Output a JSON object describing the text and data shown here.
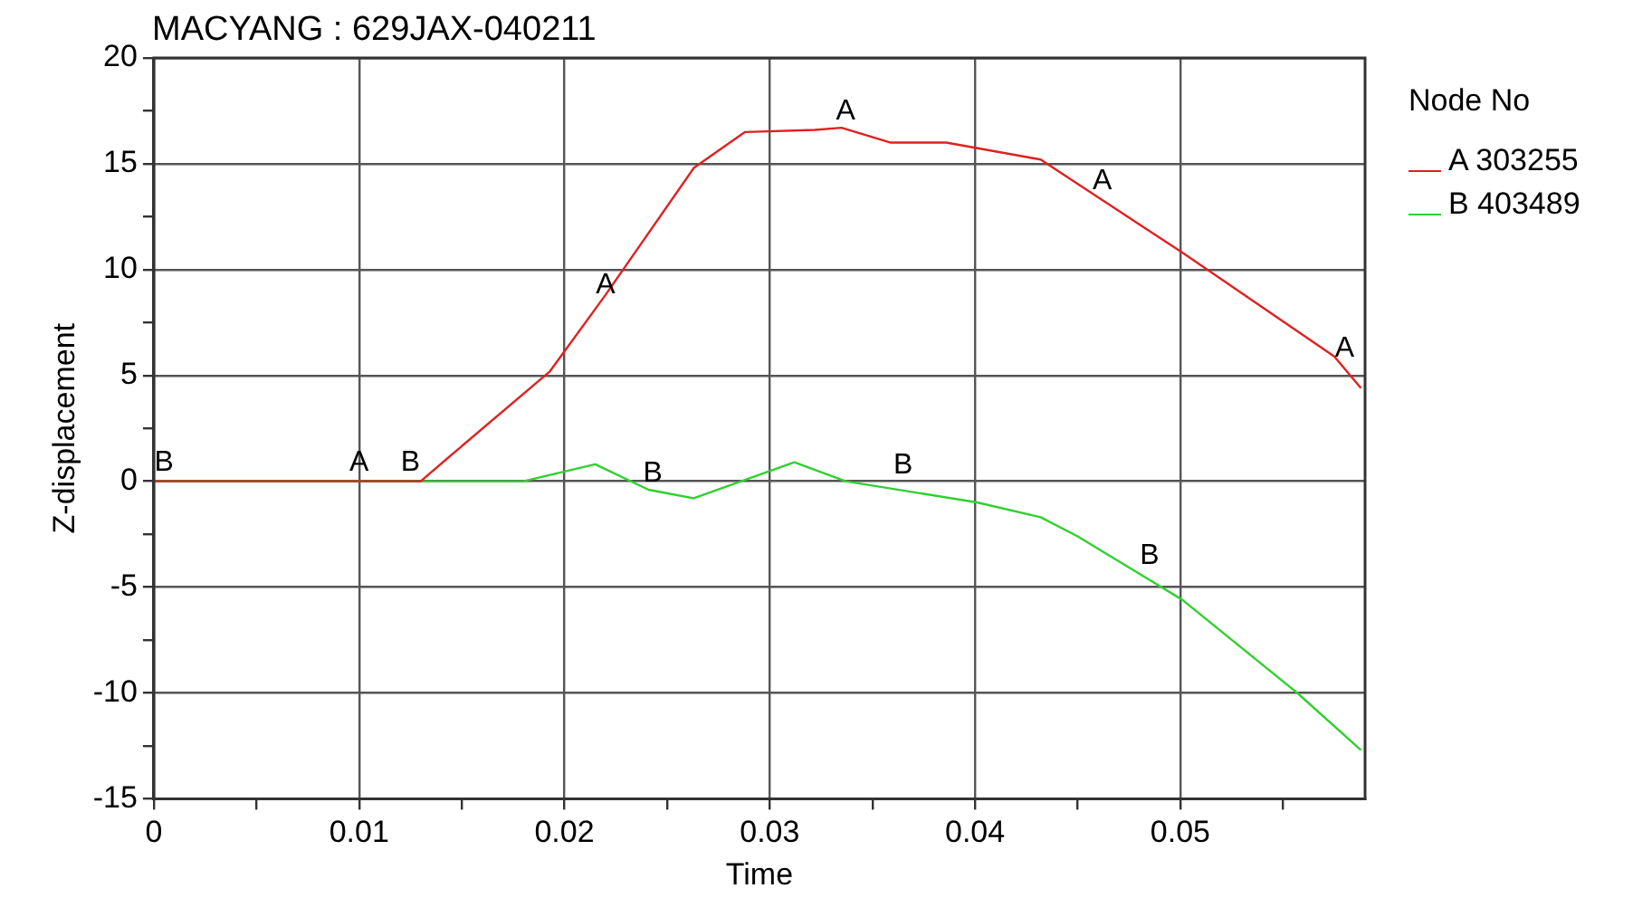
{
  "chart_data": {
    "type": "line",
    "title": "MACYANG : 629JAX-040211",
    "xlabel": "Time",
    "ylabel": "Z-displacement",
    "legend_title": "Node No",
    "legend": "right",
    "grid": true,
    "marker": "none",
    "line_style": "solid",
    "xlim": [
      0,
      0.059
    ],
    "ylim": [
      -15,
      20
    ],
    "xticks": [
      0,
      {
        "value": 0.005,
        "label": null
      },
      0.01,
      {
        "value": 0.015,
        "label": null
      },
      0.02,
      {
        "value": 0.025,
        "label": null
      },
      0.03,
      {
        "value": 0.035,
        "label": null
      },
      0.04,
      {
        "value": 0.045,
        "label": null
      },
      0.05,
      {
        "value": 0.055,
        "label": null
      }
    ],
    "yticks": [
      -15,
      {
        "value": -12.5,
        "label": null
      },
      -10,
      {
        "value": -7.5,
        "label": null
      },
      -5,
      {
        "value": -2.5,
        "label": null
      },
      0,
      {
        "value": 2.5,
        "label": null
      },
      5,
      {
        "value": 7.5,
        "label": null
      },
      10,
      {
        "value": 12.5,
        "label": null
      },
      15,
      {
        "value": 17.5,
        "label": null
      },
      20
    ],
    "series": [
      {
        "name": "A 303255",
        "color": "#e02020",
        "x": [
          0,
          0.013,
          0.0142,
          0.0193,
          0.022,
          0.0263,
          0.0288,
          0.0322,
          0.0335,
          0.0359,
          0.0386,
          0.0432,
          0.0501,
          0.0575,
          0.0588
        ],
        "values": [
          0,
          0,
          1.0,
          5.2,
          8.8,
          14.8,
          16.5,
          16.6,
          16.7,
          16.0,
          16.0,
          15.2,
          10.8,
          5.9,
          4.4
        ]
      },
      {
        "name": "B 403489",
        "color": "#30d030",
        "x": [
          0,
          0.018,
          0.0215,
          0.0241,
          0.0263,
          0.0312,
          0.0337,
          0.0401,
          0.0432,
          0.045,
          0.0501,
          0.0557,
          0.0588
        ],
        "values": [
          0,
          0,
          0.8,
          -0.4,
          -0.8,
          0.9,
          0,
          -1.0,
          -1.7,
          -2.6,
          -5.6,
          -10,
          -12.7
        ]
      }
    ],
    "annotations": [
      {
        "text": "B",
        "x": 0.0005,
        "y": 0
      },
      {
        "text": "A",
        "x": 0.01,
        "y": 0
      },
      {
        "text": "B",
        "x": 0.0125,
        "y": 0
      },
      {
        "text": "A",
        "x": 0.022,
        "y": 8.4
      },
      {
        "text": "B",
        "x": 0.0243,
        "y": -0.5
      },
      {
        "text": "A",
        "x": 0.0337,
        "y": 16.6
      },
      {
        "text": "B",
        "x": 0.0365,
        "y": -0.1
      },
      {
        "text": "A",
        "x": 0.0462,
        "y": 13.3
      },
      {
        "text": "B",
        "x": 0.0485,
        "y": -4.4
      },
      {
        "text": "A",
        "x": 0.058,
        "y": 5.4
      }
    ]
  }
}
